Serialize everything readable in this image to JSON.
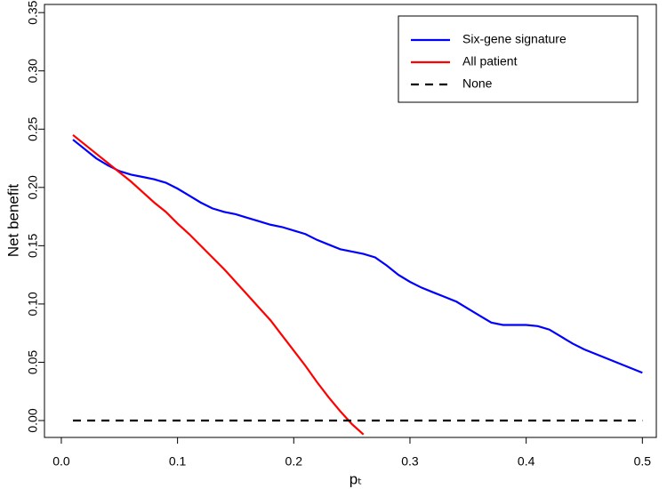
{
  "chart_data": {
    "type": "line",
    "x_label": "pₜ",
    "y_label": "Net benefit",
    "xlim": [
      -0.0145,
      0.512
    ],
    "xticks": [
      {
        "value": 0,
        "label": "0.0"
      },
      0.1,
      0.2,
      0.3,
      0.4,
      0.5
    ],
    "ylim": [
      -0.0145,
      0.357
    ],
    "yticks": [
      {
        "value": 0,
        "label": "0.00"
      },
      0.05,
      {
        "value": 0.1,
        "label": "0.10"
      },
      0.15,
      {
        "value": 0.2,
        "label": "0.20"
      },
      0.25,
      {
        "value": 0.3,
        "label": "0.30"
      },
      0.35
    ],
    "legend": "top-right",
    "series": [
      {
        "name": "Six-gene signature",
        "color": "#0000ff",
        "linestyle": "solid",
        "x": [
          0.01,
          0.02,
          0.03,
          0.04,
          0.05,
          0.06,
          0.07,
          0.08,
          0.09,
          0.1,
          0.11,
          0.12,
          0.13,
          0.14,
          0.15,
          0.16,
          0.17,
          0.18,
          0.19,
          0.2,
          0.21,
          0.22,
          0.23,
          0.24,
          0.25,
          0.26,
          0.27,
          0.28,
          0.29,
          0.3,
          0.31,
          0.32,
          0.33,
          0.34,
          0.35,
          0.36,
          0.37,
          0.38,
          0.39,
          0.4,
          0.41,
          0.42,
          0.43,
          0.44,
          0.45,
          0.46,
          0.47,
          0.48,
          0.49,
          0.5
        ],
        "values": [
          0.241,
          0.233,
          0.225,
          0.219,
          0.214,
          0.211,
          0.209,
          0.207,
          0.204,
          0.199,
          0.193,
          0.187,
          0.182,
          0.179,
          0.177,
          0.174,
          0.171,
          0.168,
          0.166,
          0.163,
          0.16,
          0.155,
          0.151,
          0.147,
          0.145,
          0.143,
          0.14,
          0.133,
          0.125,
          0.119,
          0.114,
          0.11,
          0.106,
          0.102,
          0.096,
          0.09,
          0.084,
          0.082,
          0.082,
          0.082,
          0.081,
          0.078,
          0.072,
          0.066,
          0.061,
          0.057,
          0.053,
          0.049,
          0.045,
          0.041
        ]
      },
      {
        "name": "All patient",
        "color": "#ff0000",
        "linestyle": "solid",
        "x": [
          0.01,
          0.02,
          0.03,
          0.04,
          0.05,
          0.06,
          0.07,
          0.08,
          0.09,
          0.1,
          0.11,
          0.12,
          0.13,
          0.14,
          0.15,
          0.16,
          0.17,
          0.18,
          0.19,
          0.2,
          0.21,
          0.22,
          0.23,
          0.24,
          0.25,
          0.26
        ],
        "values": [
          0.245,
          0.237,
          0.229,
          0.221,
          0.213,
          0.205,
          0.196,
          0.187,
          0.179,
          0.169,
          0.16,
          0.15,
          0.14,
          0.13,
          0.119,
          0.108,
          0.097,
          0.086,
          0.073,
          0.06,
          0.047,
          0.033,
          0.02,
          0.008,
          -0.003,
          -0.012
        ]
      },
      {
        "name": "None",
        "color": "#000000",
        "linestyle": "dashed",
        "x": [
          0.01,
          0.5
        ],
        "values": [
          0,
          0
        ]
      }
    ]
  }
}
